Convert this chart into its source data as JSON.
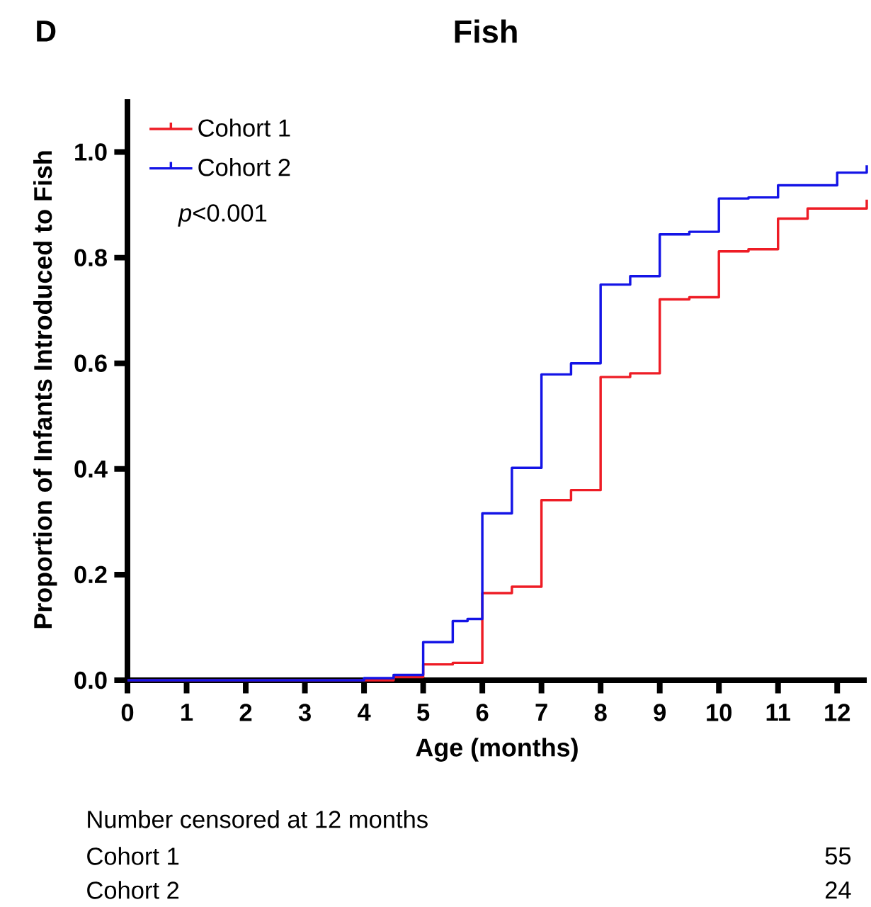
{
  "chart_data": {
    "type": "step",
    "title": "Fish",
    "xlabel": "Age (months)",
    "ylabel": "Proportion of Infants Introduced to Fish",
    "xlim": [
      0,
      12.5
    ],
    "xticks": [
      0,
      1,
      2,
      3,
      4,
      5,
      6,
      7,
      8,
      9,
      10,
      11,
      12
    ],
    "ylim": [
      0,
      1.1
    ],
    "yticks": [
      {
        "value": 0,
        "label": "0.0"
      },
      {
        "value": 0.2,
        "label": "0.2"
      },
      {
        "value": 0.4,
        "label": "0.4"
      },
      {
        "value": 0.6,
        "label": "0.6"
      },
      {
        "value": 0.8,
        "label": "0.8"
      },
      {
        "value": 1,
        "label": "1.0"
      }
    ],
    "legend": "top left",
    "series": [
      {
        "name": "Cohort 1",
        "color": "#ee1c25",
        "x": [
          0,
          4,
          4.5,
          5,
          5.5,
          6,
          6.5,
          7,
          7.5,
          8,
          8.5,
          9,
          9.5,
          10,
          10.5,
          11,
          11.5,
          12.5
        ],
        "values": [
          0,
          null,
          0.006,
          0.03,
          0.033,
          0.165,
          0.177,
          0.341,
          0.36,
          0.574,
          0.581,
          0.721,
          0.725,
          0.812,
          0.816,
          0.874,
          0.893,
          0.91
        ]
      },
      {
        "name": "Cohort 2",
        "color": "#1414e6",
        "x": [
          0,
          4,
          4.5,
          5,
          5.5,
          5.75,
          6,
          6.5,
          7,
          7.5,
          8,
          8.5,
          9,
          9.5,
          10,
          10.5,
          11,
          12,
          12.5
        ],
        "values": [
          0,
          0.004,
          0.01,
          0.072,
          0.112,
          0.116,
          0.316,
          0.402,
          0.579,
          0.6,
          0.749,
          0.765,
          0.844,
          0.849,
          0.912,
          0.914,
          0.937,
          0.961,
          0.975
        ]
      }
    ],
    "annotations": [
      "D",
      "*p*<0.001",
      "Number censored at 12 months",
      "Cohort 1",
      "55",
      "Cohort 2",
      "24"
    ]
  }
}
